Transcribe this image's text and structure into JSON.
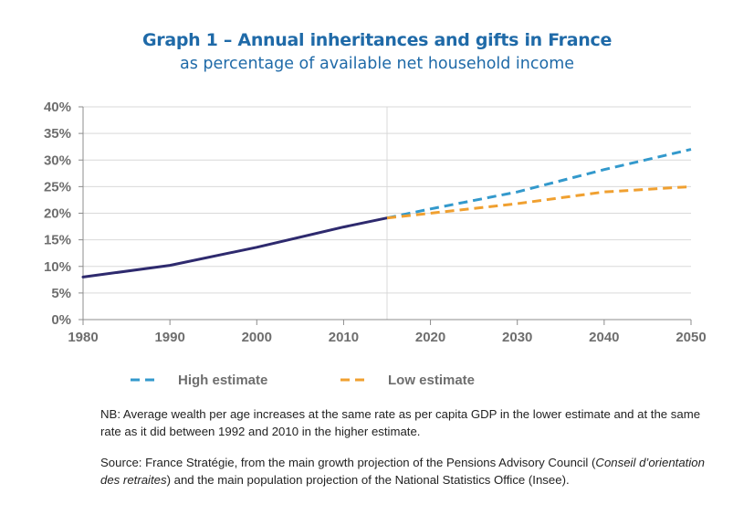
{
  "title": "Graph 1 – Annual inheritances and gifts in France",
  "subtitle": "as percentage of available net household income",
  "notes": {
    "nb": "NB: Average wealth per age increases at the same rate as per capita GDP in the lower estimate and at the same rate as it did between 1992 and 2010 in the higher estimate.",
    "source_prefix": "Source: France Stratégie, from the main growth projection of the Pensions Advisory Council (",
    "source_italic": "Conseil d’orientation des retraites",
    "source_suffix": ") and the main population projection of the National Statistics Office (Insee)."
  },
  "colors": {
    "historical": "#2e2a6e",
    "high": "#3399cc",
    "low": "#f0a030",
    "grid": "#d9d9d9",
    "title": "#1f6aa8"
  },
  "chart_data": {
    "type": "line",
    "title": "Graph 1 – Annual inheritances and gifts in France",
    "subtitle": "as percentage of available net household income",
    "xlim": [
      1980,
      2050
    ],
    "ylim": [
      0,
      40
    ],
    "x_ticks": [
      "1980",
      "1990",
      "2000",
      "2010",
      "2020",
      "2030",
      "2040",
      "2050"
    ],
    "y_ticks": [
      "0%",
      "5%",
      "10%",
      "15%",
      "20%",
      "25%",
      "30%",
      "35%",
      "40%"
    ],
    "grid": "horizontal",
    "divider_x": 2015,
    "legend_position": "bottom",
    "series": [
      {
        "key": "historical",
        "style": "solid",
        "x": [
          1980,
          1990,
          2000,
          2010,
          2015
        ],
        "y": [
          8,
          10.2,
          13.6,
          17.4,
          19.1
        ]
      },
      {
        "key": "high",
        "name": "High estimate",
        "style": "dashed",
        "x": [
          2015,
          2020,
          2030,
          2040,
          2050
        ],
        "y": [
          19.1,
          20.8,
          24,
          28.2,
          32
        ]
      },
      {
        "key": "low",
        "name": "Low estimate",
        "style": "dashed",
        "x": [
          2015,
          2020,
          2030,
          2040,
          2050
        ],
        "y": [
          19.1,
          20,
          21.8,
          24,
          25
        ]
      }
    ]
  }
}
